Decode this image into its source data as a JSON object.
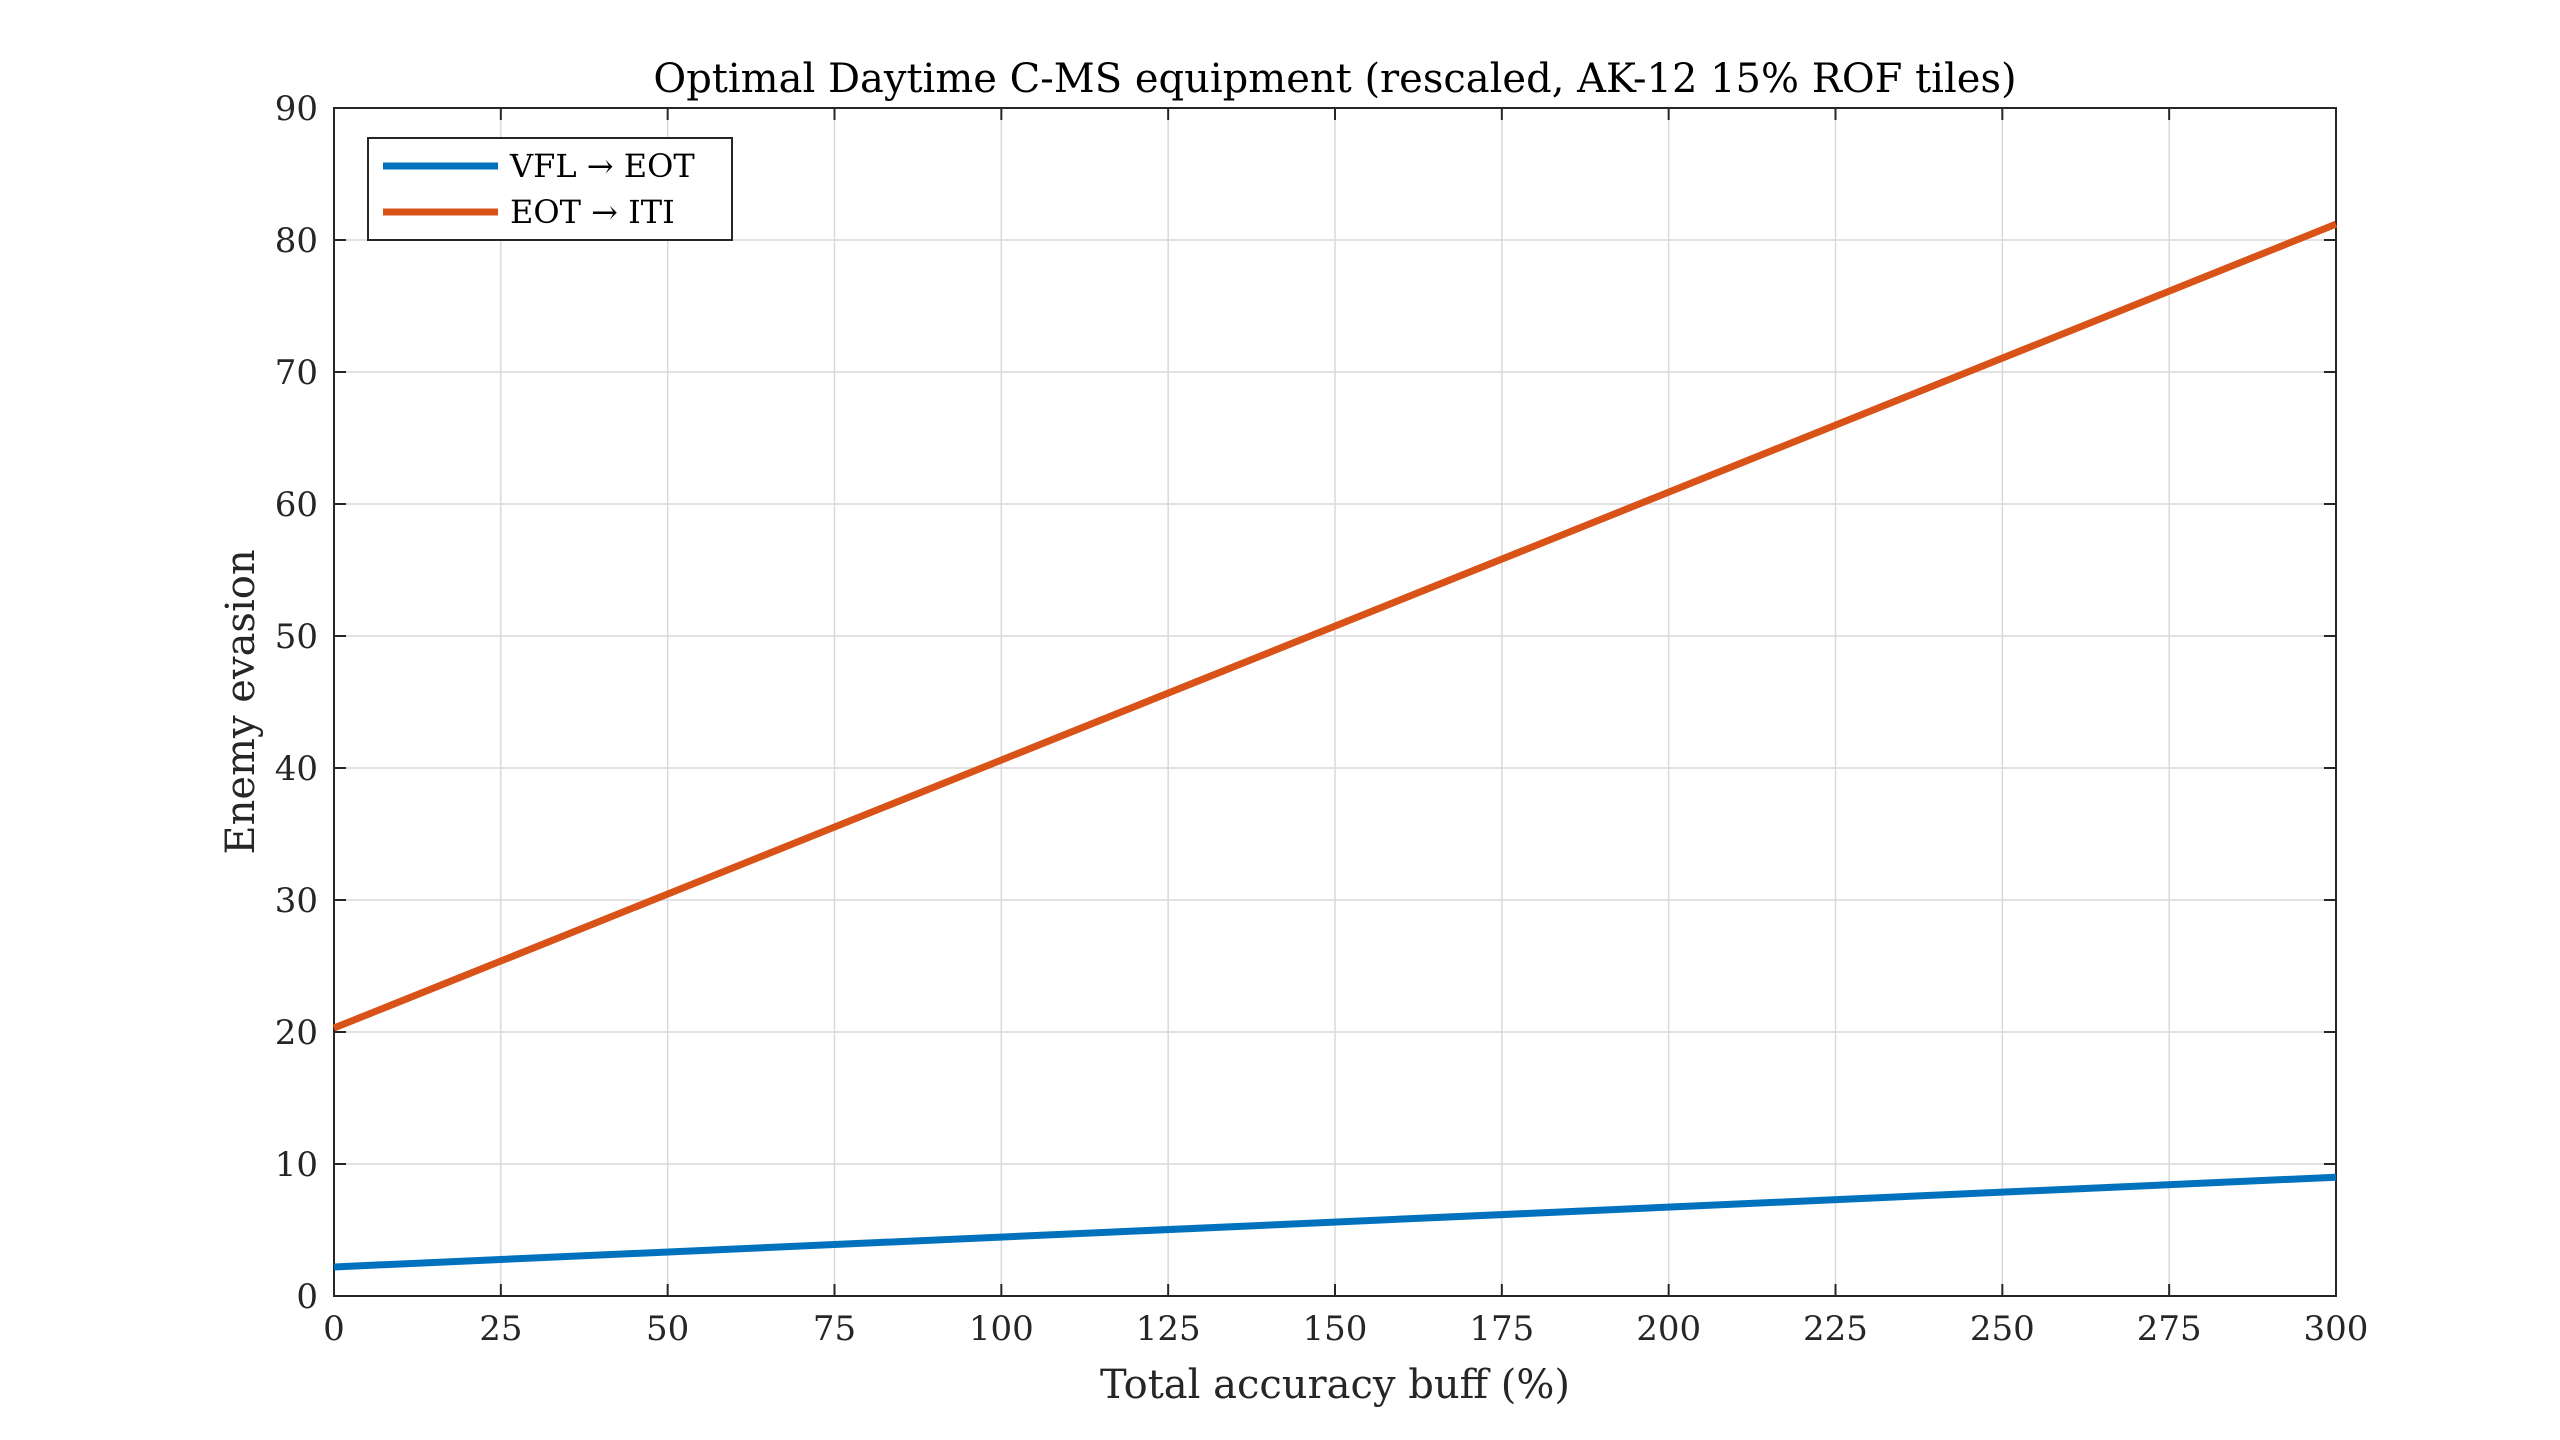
{
  "chart_data": {
    "type": "line",
    "title": "Optimal Daytime C-MS equipment (rescaled, AK-12 15% ROF tiles)",
    "xlabel": "Total accuracy buff (%)",
    "ylabel": "Enemy evasion",
    "xlim": [
      0,
      300
    ],
    "ylim": [
      0,
      90
    ],
    "xticks": [
      0,
      25,
      50,
      75,
      100,
      125,
      150,
      175,
      200,
      225,
      250,
      275,
      300
    ],
    "yticks": [
      0,
      10,
      20,
      30,
      40,
      50,
      60,
      70,
      80,
      90
    ],
    "grid": true,
    "legend_position": "top-left",
    "series": [
      {
        "name": "VFL → EOT",
        "color": "#0072BD",
        "x": [
          0,
          300
        ],
        "y": [
          2.2,
          9.0
        ]
      },
      {
        "name": "EOT → ITI",
        "color": "#D95319",
        "x": [
          0,
          300
        ],
        "y": [
          20.3,
          81.2
        ]
      }
    ]
  }
}
